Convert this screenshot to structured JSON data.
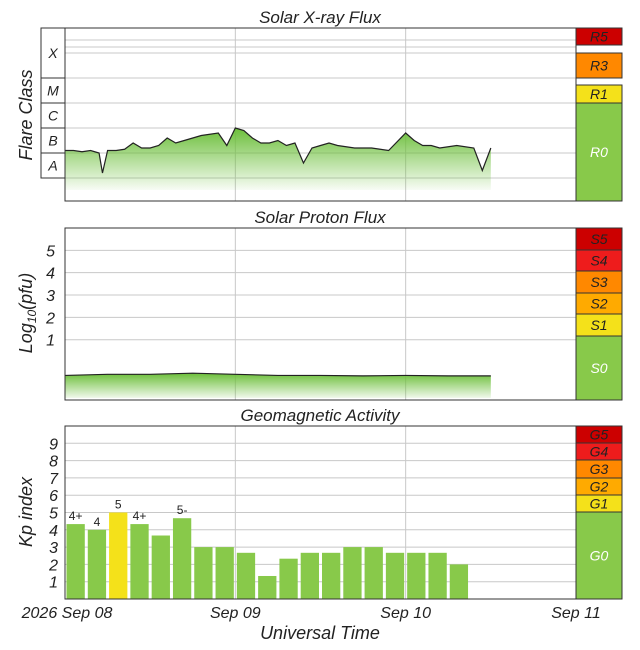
{
  "chart_data": [
    {
      "type": "area",
      "title": "Solar X-ray Flux",
      "ylabel": "Flare Class",
      "class_labels": [
        "X",
        "M",
        "C",
        "B",
        "A"
      ],
      "x_ticks": [
        "2026 Sep 08",
        "Sep 09",
        "Sep 10",
        "Sep 11"
      ],
      "xlim": [
        0,
        3
      ],
      "x": [
        0,
        0.05,
        0.1,
        0.15,
        0.2,
        0.22,
        0.25,
        0.3,
        0.35,
        0.4,
        0.45,
        0.5,
        0.55,
        0.6,
        0.65,
        0.7,
        0.8,
        0.9,
        0.95,
        1.0,
        1.05,
        1.1,
        1.15,
        1.2,
        1.25,
        1.3,
        1.35,
        1.4,
        1.45,
        1.5,
        1.55,
        1.6,
        1.7,
        1.8,
        1.9,
        2.0,
        2.05,
        2.1,
        2.15,
        2.2,
        2.3,
        2.4,
        2.45,
        2.5
      ],
      "values": [
        2.1,
        2.1,
        2.05,
        2.1,
        2.0,
        1.2,
        2.1,
        2.1,
        2.15,
        2.4,
        2.2,
        2.2,
        2.3,
        2.6,
        2.4,
        2.5,
        2.7,
        2.8,
        2.3,
        3.0,
        2.9,
        2.6,
        2.4,
        2.4,
        2.5,
        2.3,
        2.4,
        1.6,
        2.2,
        2.3,
        2.4,
        2.3,
        2.2,
        2.2,
        2.1,
        2.8,
        2.5,
        2.3,
        2.3,
        2.2,
        2.3,
        2.2,
        1.3,
        2.2
      ],
      "scale": [
        {
          "label": "R5",
          "color": "#cc0000"
        },
        {
          "label": "R3",
          "color": "#ff8800"
        },
        {
          "label": "R1",
          "color": "#f4e11a"
        },
        {
          "label": "R0",
          "color": "#88c94a"
        }
      ]
    },
    {
      "type": "area",
      "title": "Solar Proton Flux",
      "ylabel": "Log10(pfu)",
      "y_ticks": [
        "1",
        "2",
        "3",
        "4",
        "5"
      ],
      "ylim": [
        -1.7,
        6
      ],
      "xlim": [
        0,
        3
      ],
      "x": [
        0,
        0.25,
        0.5,
        0.75,
        1.0,
        1.25,
        1.5,
        1.75,
        2.0,
        2.25,
        2.5
      ],
      "values": [
        -0.6,
        -0.55,
        -0.55,
        -0.5,
        -0.55,
        -0.6,
        -0.6,
        -0.62,
        -0.6,
        -0.62,
        -0.62
      ],
      "scale": [
        {
          "label": "S5",
          "color": "#cc0000"
        },
        {
          "label": "S4",
          "color": "#ee1c1c"
        },
        {
          "label": "S3",
          "color": "#ff8800"
        },
        {
          "label": "S2",
          "color": "#ffaa00"
        },
        {
          "label": "S1",
          "color": "#f4e11a"
        },
        {
          "label": "S0",
          "color": "#88c94a"
        }
      ]
    },
    {
      "type": "bar",
      "title": "Geomagnetic Activity",
      "ylabel": "Kp index",
      "xlabel": "Universal Time",
      "y_ticks": [
        "1",
        "2",
        "3",
        "4",
        "5",
        "6",
        "7",
        "8",
        "9"
      ],
      "ylim": [
        0,
        10
      ],
      "x_ticks": [
        "2026 Sep 08",
        "Sep 09",
        "Sep 10",
        "Sep 11"
      ],
      "values": [
        4.33,
        4.0,
        5.0,
        4.33,
        3.67,
        4.67,
        3.0,
        3.0,
        2.67,
        1.33,
        2.33,
        2.67,
        2.67,
        3.0,
        3.0,
        2.67,
        2.67,
        2.67,
        2.0
      ],
      "bar_labels": [
        "4+",
        "4",
        "5",
        "4+",
        "",
        "5-",
        "",
        "",
        "",
        "",
        "",
        "",
        "",
        "",
        "",
        "",
        "",
        "",
        ""
      ],
      "highlight_color": "#f4e11a",
      "bar_color": "#88c94a",
      "scale": [
        {
          "label": "G5",
          "color": "#cc0000"
        },
        {
          "label": "G4",
          "color": "#ee1c1c"
        },
        {
          "label": "G3",
          "color": "#ff8800"
        },
        {
          "label": "G2",
          "color": "#ffaa00"
        },
        {
          "label": "G1",
          "color": "#f4e11a"
        },
        {
          "label": "G0",
          "color": "#88c94a"
        }
      ]
    }
  ]
}
